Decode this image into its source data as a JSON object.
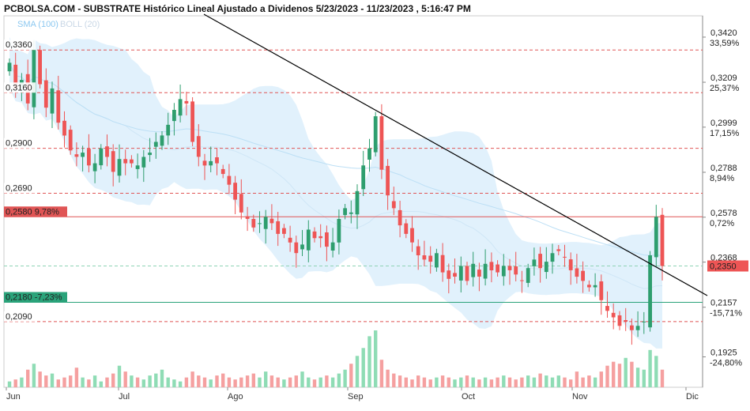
{
  "title": "PCBOLSA.COM - SUBSTRATE Histórico Lineal Ajustado a Dividenos 5/23/2023 - 11/23/2023 , 5:16:47 PM",
  "legend": {
    "sma": "SMA (100)",
    "boll": "BOLL (20)"
  },
  "colors": {
    "up": "#2e9e6e",
    "down": "#ee5555",
    "up_volume": "#8fdcb5",
    "down_volume": "#f5a0a0",
    "band_fill": "#dceffb",
    "sma_line": "#bcdff5",
    "resistance": "#e05555",
    "support": "#2aa37a",
    "trendline": "#000000"
  },
  "chart_data": {
    "type": "candlestick",
    "x_labels": [
      "Jun",
      "Jul",
      "Ago",
      "Sep",
      "Oct",
      "Nov",
      "Dic"
    ],
    "y_range": [
      0.1925,
      0.342
    ],
    "right_axis": [
      {
        "price": "0,3420",
        "pct": "33,59%",
        "color": "#2aa37a"
      },
      {
        "price": "0,3209",
        "pct": "25,37%",
        "color": "#2aa37a"
      },
      {
        "price": "0,2999",
        "pct": "17,15%",
        "color": "#2aa37a"
      },
      {
        "price": "0,2788",
        "pct": "8,94%",
        "color": "#2aa37a"
      },
      {
        "price": "0,2578",
        "pct": "0,72%",
        "color": "#2aa37a"
      },
      {
        "price": "0,2368",
        "pct": "",
        "color": "#2aa37a"
      },
      {
        "price": "0,2157",
        "pct": "-15,71%",
        "color": "#e05555"
      },
      {
        "price": "0,1925",
        "pct": "-24,80%",
        "color": "#e05555"
      }
    ],
    "current_price": "0,2350",
    "levels": [
      {
        "label": "0,3360",
        "value": 0.336,
        "kind": "dashed"
      },
      {
        "label": "0,3160",
        "value": 0.316,
        "kind": "dashed"
      },
      {
        "label": "0,2900",
        "value": 0.29,
        "kind": "dashed"
      },
      {
        "label": "0,2690",
        "value": 0.269,
        "kind": "dashed"
      },
      {
        "label": "0,2580 9,78%",
        "value": 0.258,
        "kind": "resistance"
      },
      {
        "label": "0,2180 -7,23%",
        "value": 0.218,
        "kind": "support"
      },
      {
        "label": "0,2090",
        "value": 0.209,
        "kind": "dashed"
      }
    ],
    "trendline": [
      {
        "date": "Jun 25",
        "price": 0.348
      },
      {
        "date": "Dic 15",
        "price": 0.217
      }
    ],
    "closes": [
      0.33,
      0.318,
      0.322,
      0.311,
      0.336,
      0.32,
      0.309,
      0.318,
      0.302,
      0.296,
      0.289,
      0.286,
      0.288,
      0.282,
      0.283,
      0.29,
      0.286,
      0.279,
      0.285,
      0.283,
      0.283,
      0.282,
      0.286,
      0.288,
      0.293,
      0.296,
      0.301,
      0.308,
      0.313,
      0.311,
      0.293,
      0.286,
      0.282,
      0.284,
      0.283,
      0.278,
      0.273,
      0.266,
      0.26,
      0.257,
      0.253,
      0.255,
      0.258,
      0.255,
      0.25,
      0.25,
      0.246,
      0.241,
      0.245,
      0.252,
      0.248,
      0.248,
      0.244,
      0.246,
      0.257,
      0.262,
      0.26,
      0.27,
      0.282,
      0.29,
      0.305,
      0.28,
      0.268,
      0.262,
      0.254,
      0.25,
      0.246,
      0.24,
      0.238,
      0.237,
      0.241,
      0.232,
      0.229,
      0.23,
      0.235,
      0.228,
      0.236,
      0.23,
      0.236,
      0.233,
      0.232,
      0.235,
      0.233,
      0.231,
      0.228,
      0.234,
      0.238,
      0.234,
      0.237,
      0.241,
      0.242,
      0.239,
      0.233,
      0.23,
      0.228,
      0.225,
      0.226,
      0.219,
      0.214,
      0.211,
      0.207,
      0.209,
      0.205,
      0.207,
      0.209,
      0.24,
      0.258,
      0.235
    ],
    "volume": [
      0.3,
      0.4,
      0.5,
      0.9,
      1.2,
      0.8,
      0.6,
      0.7,
      0.4,
      0.5,
      0.6,
      1.0,
      0.5,
      0.4,
      0.6,
      0.3,
      0.5,
      0.7,
      1.1,
      0.8,
      0.6,
      0.5,
      0.4,
      0.6,
      0.7,
      0.9,
      0.5,
      0.4,
      0.3,
      0.5,
      0.8,
      0.6,
      0.5,
      0.4,
      0.6,
      0.7,
      0.5,
      0.4,
      0.5,
      0.6,
      0.7,
      0.5,
      0.8,
      0.6,
      0.5,
      0.4,
      0.5,
      0.6,
      0.8,
      0.5,
      0.4,
      0.5,
      0.6,
      0.5,
      0.7,
      0.9,
      1.2,
      1.6,
      2.0,
      2.6,
      2.9,
      1.4,
      0.9,
      0.7,
      0.6,
      0.5,
      0.4,
      0.6,
      0.5,
      0.4,
      0.5,
      0.6,
      0.5,
      0.4,
      0.5,
      0.6,
      0.5,
      0.4,
      0.5,
      0.4,
      0.5,
      0.6,
      0.5,
      0.4,
      0.5,
      0.6,
      0.5,
      0.7,
      0.6,
      0.5,
      0.6,
      0.5,
      0.4,
      0.8,
      0.5,
      0.6,
      0.5,
      0.8,
      1.1,
      1.3,
      1.2,
      1.5,
      1.3,
      1.0,
      0.9,
      1.9,
      1.6,
      0.9
    ]
  }
}
